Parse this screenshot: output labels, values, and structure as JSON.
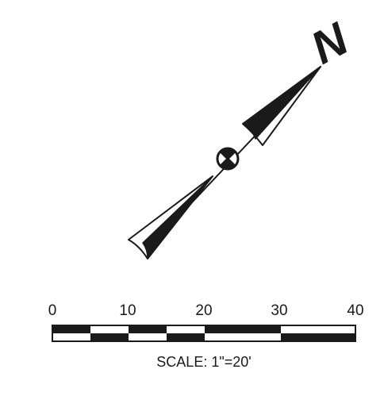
{
  "north_arrow": {
    "label": "N"
  },
  "scale_bar": {
    "tick_labels": [
      "0",
      "10",
      "20",
      "30",
      "40"
    ],
    "caption": "SCALE: 1\"=20'"
  },
  "colors": {
    "ink": "#1a1a1a",
    "paper": "#ffffff"
  }
}
